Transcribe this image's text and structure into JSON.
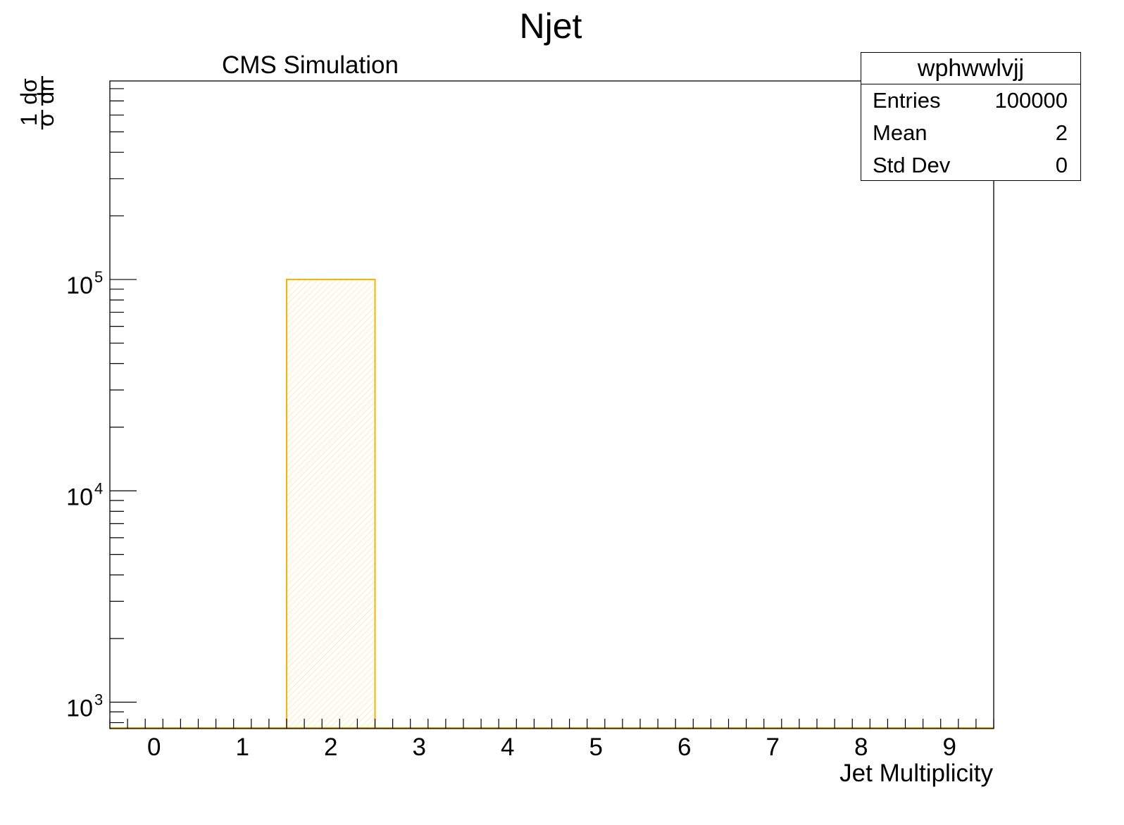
{
  "chart_data": {
    "type": "bar",
    "title": "Njet",
    "subtitle": "CMS Simulation",
    "xlabel": "Jet Multiplicity",
    "ylabel": "1/σ dσ/dn",
    "ylabel_parts": {
      "one": "1",
      "dsigma": "dσ",
      "sigma": "σ",
      "dn": "dn"
    },
    "x_ticks": [
      "0",
      "1",
      "2",
      "3",
      "4",
      "5",
      "6",
      "7",
      "8",
      "9"
    ],
    "y_ticks": [
      {
        "base": "10",
        "exp": "3",
        "value": 1000
      },
      {
        "base": "10",
        "exp": "4",
        "value": 10000
      },
      {
        "base": "10",
        "exp": "5",
        "value": 100000
      }
    ],
    "xlim": [
      -0.5,
      9.5
    ],
    "ylim": [
      750,
      870000
    ],
    "yscale": "log",
    "bins": [
      {
        "x": 2,
        "value": 100000
      }
    ],
    "bar_color": "#ffb000",
    "grid": false
  },
  "stats": {
    "title": "wphwwlvjj",
    "rows": [
      {
        "label": "Entries",
        "value": "100000"
      },
      {
        "label": "Mean",
        "value": "2"
      },
      {
        "label": "Std Dev",
        "value": "0"
      }
    ]
  }
}
